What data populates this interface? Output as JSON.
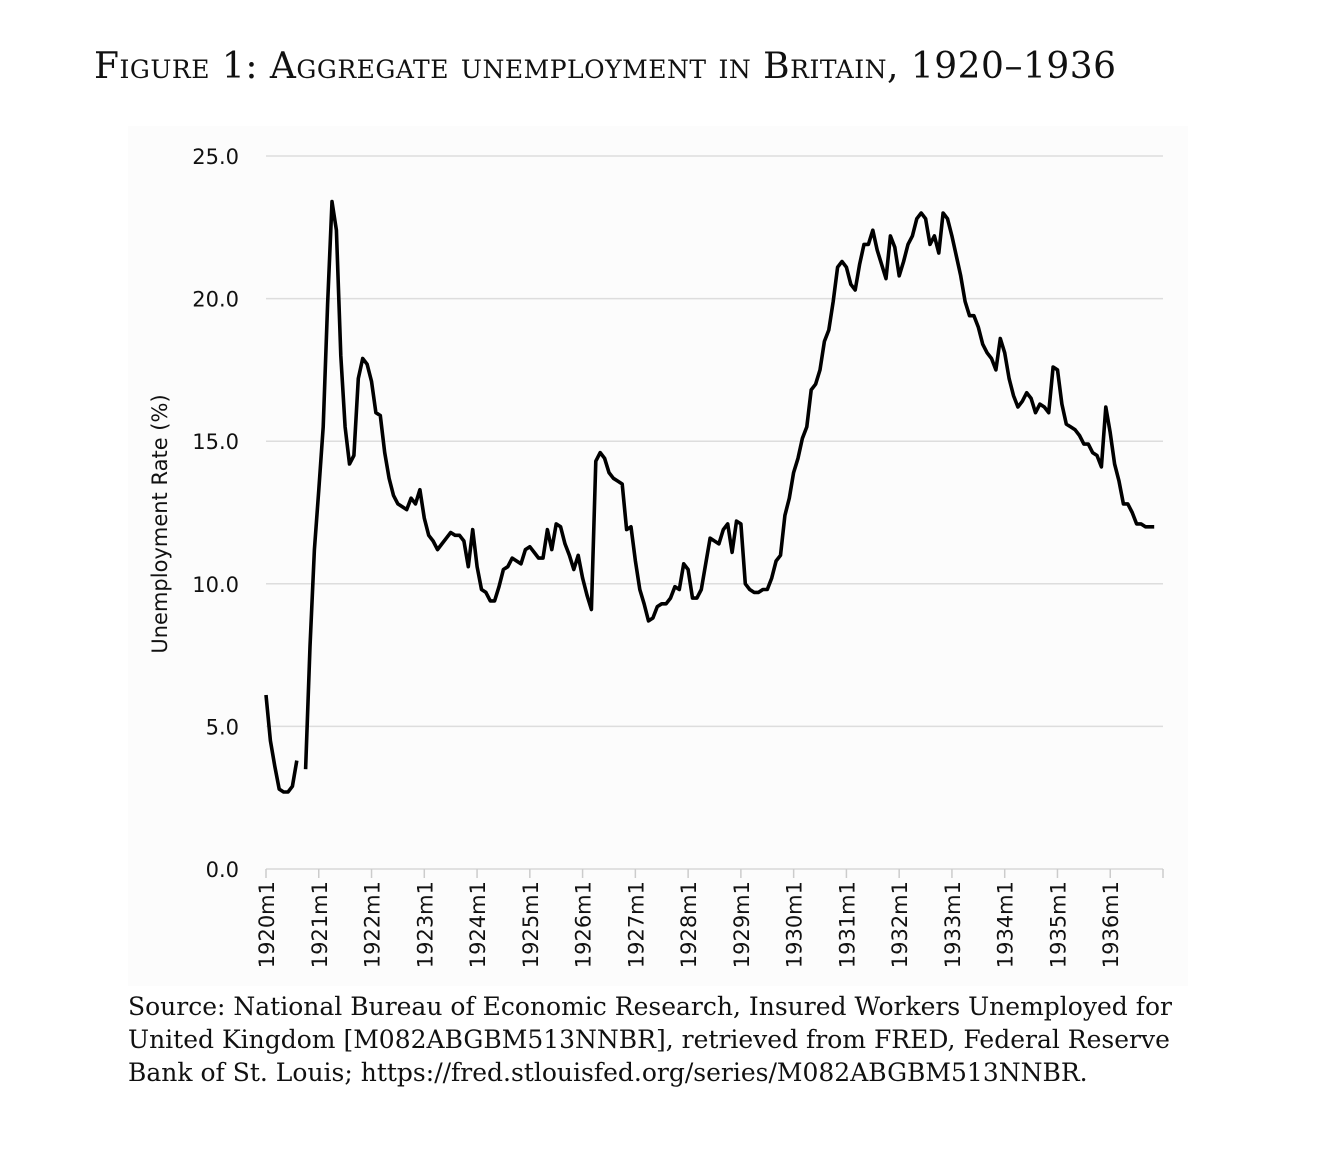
{
  "figure": {
    "title": "Figure 1: Aggregate unemployment in Britain, 1920–1936",
    "source": "Source: National Bureau of Economic Research, Insured Workers Unemployed for United Kingdom [M082ABGBM513NNBR], retrieved from FRED, Federal Reserve Bank of St. Louis; https://fred.stlouisfed.org/series/M082ABGBM513NNBR."
  },
  "chart_data": {
    "type": "line",
    "title": "",
    "xlabel": "",
    "ylabel": "Unemployment Rate (%)",
    "ylim": [
      0,
      25
    ],
    "yticks": [
      "0.0",
      "5.0",
      "10.0",
      "15.0",
      "20.0",
      "25.0"
    ],
    "xticks": [
      "1920m1",
      "1921m1",
      "1922m1",
      "1923m1",
      "1924m1",
      "1925m1",
      "1926m1",
      "1927m1",
      "1928m1",
      "1929m1",
      "1930m1",
      "1931m1",
      "1932m1",
      "1933m1",
      "1934m1",
      "1935m1",
      "1936m1"
    ],
    "grid": true,
    "line_color": "#000000",
    "grid_color": "#dddddd",
    "series": [
      {
        "values": [
          6.1,
          4.5,
          3.6,
          2.8,
          2.7,
          2.7,
          2.9,
          3.8,
          null,
          3.5,
          7.8,
          11.2,
          13.3,
          15.5,
          19.8,
          23.4,
          22.4,
          18.0,
          15.5,
          14.2,
          14.5,
          17.2,
          17.9,
          17.7,
          17.1,
          16.0,
          15.9,
          14.6,
          13.7,
          13.1,
          12.8,
          12.7,
          12.6,
          13.0,
          12.8,
          13.3,
          12.3,
          11.7,
          11.5,
          11.2,
          11.4,
          11.6,
          11.8,
          11.7,
          11.7,
          11.5,
          10.6,
          11.9,
          10.6,
          9.8,
          9.7,
          9.4,
          9.4,
          9.9,
          10.5,
          10.6,
          10.9,
          10.8,
          10.7,
          11.2,
          11.3,
          11.1,
          10.9,
          10.9,
          11.9,
          11.2,
          12.1,
          12.0,
          11.4,
          11.0,
          10.5,
          11.0,
          10.2,
          9.6,
          9.1,
          14.3,
          14.6,
          14.4,
          13.9,
          13.7,
          13.6,
          13.5,
          11.9,
          12.0,
          10.8,
          9.8,
          9.3,
          8.7,
          8.8,
          9.2,
          9.3,
          9.3,
          9.5,
          9.9,
          9.8,
          10.7,
          10.5,
          9.5,
          9.5,
          9.8,
          10.7,
          11.6,
          11.5,
          11.4,
          11.9,
          12.1,
          11.1,
          12.2,
          12.1,
          10.0,
          9.8,
          9.7,
          9.7,
          9.8,
          9.8,
          10.2,
          10.8,
          11.0,
          12.4,
          13.0,
          13.9,
          14.4,
          15.1,
          15.5,
          16.8,
          17.0,
          17.5,
          18.5,
          18.9,
          19.9,
          21.1,
          21.3,
          21.1,
          20.5,
          20.3,
          21.2,
          21.9,
          21.9,
          22.4,
          21.7,
          21.2,
          20.7,
          22.2,
          21.8,
          20.8,
          21.3,
          21.9,
          22.2,
          22.8,
          23.0,
          22.8,
          21.9,
          22.2,
          21.6,
          23.0,
          22.8,
          22.2,
          21.5,
          20.8,
          19.9,
          19.4,
          19.4,
          19.0,
          18.4,
          18.1,
          17.9,
          17.5,
          18.6,
          18.1,
          17.2,
          16.6,
          16.2,
          16.4,
          16.7,
          16.5,
          16.0,
          16.3,
          16.2,
          16.0,
          17.6,
          17.5,
          16.3,
          15.6,
          15.5,
          15.4,
          15.2,
          14.9,
          14.9,
          14.6,
          14.5,
          14.1,
          16.2,
          15.3,
          14.2,
          13.6,
          12.8,
          12.8,
          12.5,
          12.1,
          12.1,
          12.0,
          12.0,
          12.0
        ]
      }
    ]
  }
}
